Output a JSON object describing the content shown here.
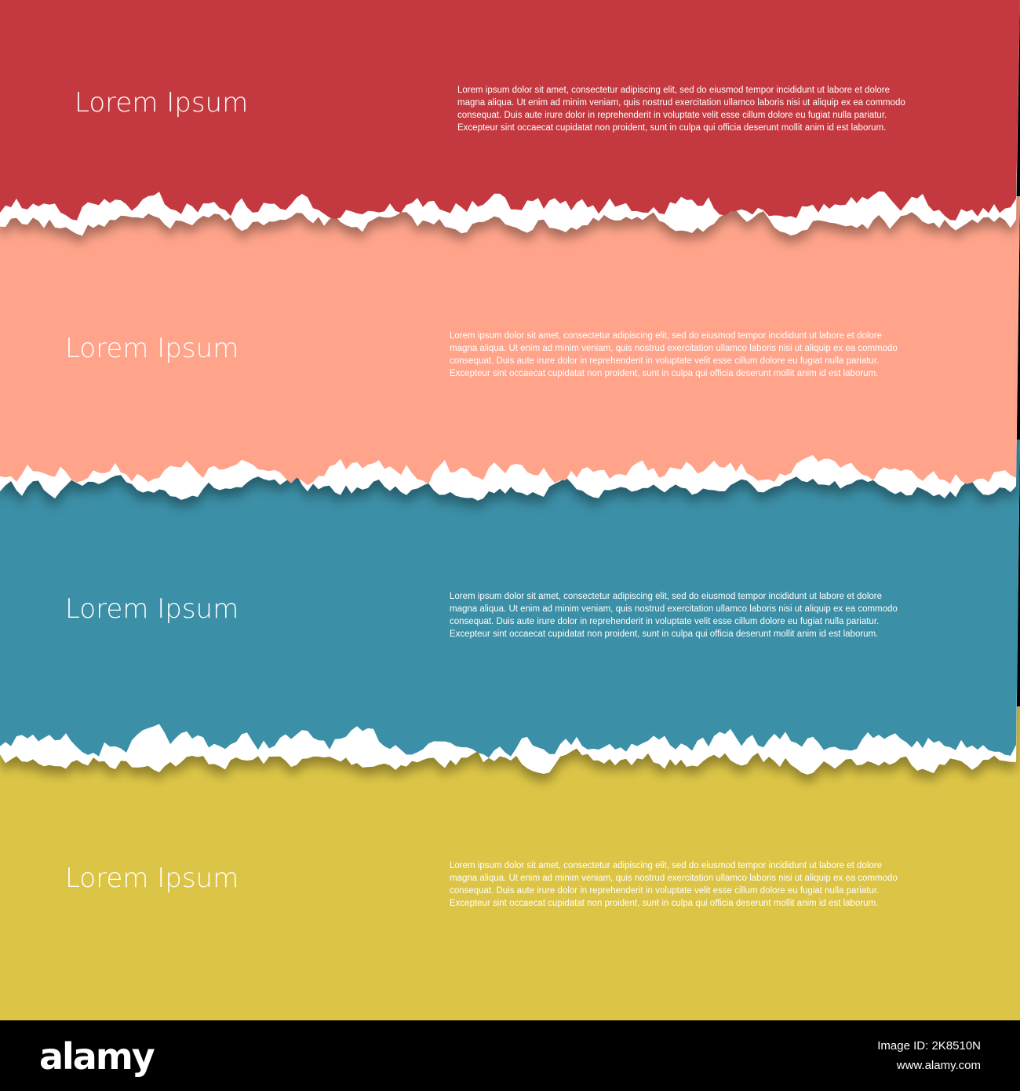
{
  "bands": [
    {
      "title": "Lorem Ipsum",
      "body": [
        "Lorem ipsum dolor sit amet, consectetur adipiscing elit, sed do eiusmod tempor incididunt ut labore et dolore",
        "magna aliqua. Ut enim ad minim veniam, quis nostrud exercitation ullamco laboris nisi ut aliquip ex ea commodo",
        "consequat. Duis aute irure dolor in reprehenderit in voluptate velit esse cillum dolore eu fugiat nulla pariatur.",
        "Excepteur sint occaecat cupidatat non proident, sunt in culpa qui officia deserunt mollit anim id est laborum."
      ]
    },
    {
      "title": "Lorem Ipsum",
      "body": [
        "Lorem ipsum dolor sit amet, consectetur adipiscing elit, sed do eiusmod tempor incididunt ut labore et dolore",
        "magna aliqua. Ut enim ad minim veniam, quis nostrud exercitation ullamco laboris nisi ut aliquip ex ea commodo",
        "consequat. Duis aute irure dolor in reprehenderit in voluptate velit esse cillum dolore eu fugiat nulla pariatur.",
        "Excepteur sint occaecat cupidatat non proident, sunt in culpa qui officia deserunt mollit anim id est laborum."
      ]
    },
    {
      "title": "Lorem Ipsum",
      "body": [
        "Lorem ipsum dolor sit amet, consectetur adipiscing elit, sed do eiusmod tempor incididunt ut labore et dolore",
        "magna aliqua. Ut enim ad minim veniam, quis nostrud exercitation ullamco laboris nisi ut aliquip ex ea commodo",
        "consequat. Duis aute irure dolor in reprehenderit in voluptate velit esse cillum dolore eu fugiat nulla pariatur.",
        "Excepteur sint occaecat cupidatat non proident, sunt in culpa qui officia deserunt mollit anim id est laborum."
      ]
    },
    {
      "title": "Lorem Ipsum",
      "body": [
        "Lorem ipsum dolor sit amet, consectetur adipiscing elit, sed do eiusmod tempor incididunt ut labore et dolore",
        "magna aliqua. Ut enim ad minim veniam, quis nostrud exercitation ullamco laboris nisi ut aliquip ex ea commodo",
        "consequat. Duis aute irure dolor in reprehenderit in voluptate velit esse cillum dolore eu fugiat nulla pariatur.",
        "Excepteur sint occaecat cupidatat non proident, sunt in culpa qui officia deserunt mollit anim id est laborum."
      ]
    }
  ],
  "footer": {
    "logo": "alamy",
    "image_id": "Image ID: 2K8510N",
    "url": "www.alamy.com"
  }
}
